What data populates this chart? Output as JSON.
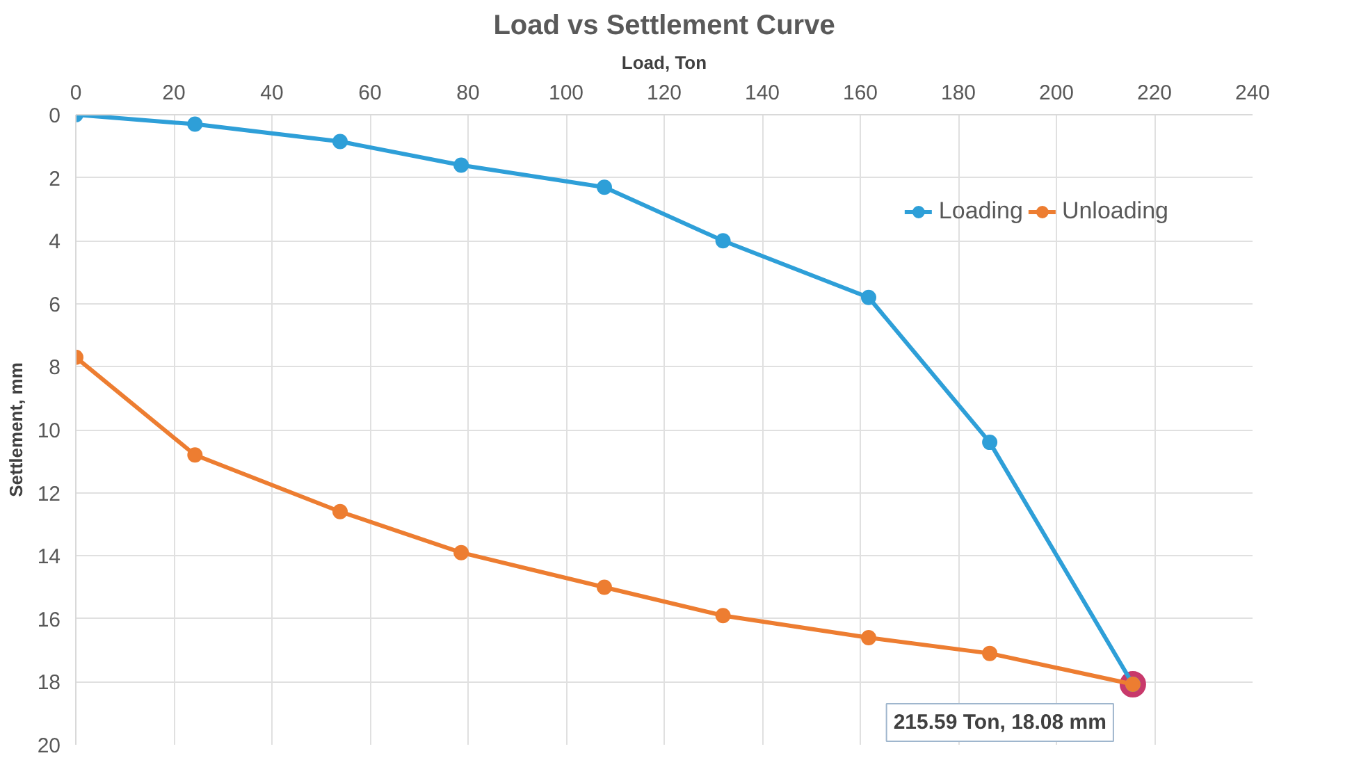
{
  "chart_data": {
    "type": "line",
    "title": "Load vs Settlement Curve",
    "xlabel": "Load, Ton",
    "ylabel": "Settlement, mm",
    "xlim": [
      0,
      240
    ],
    "xticks": [
      0,
      20,
      40,
      60,
      80,
      100,
      120,
      140,
      160,
      180,
      200,
      220,
      240
    ],
    "ylim": [
      20,
      0
    ],
    "yticks": [
      0,
      2,
      4,
      6,
      8,
      10,
      12,
      14,
      16,
      18,
      20
    ],
    "grid": true,
    "legend": "top right",
    "marker": "circle",
    "line_style": "solid",
    "series": [
      {
        "name": "Loading",
        "color": "#2e9fd8",
        "x": [
          0,
          24.3,
          53.9,
          78.6,
          107.8,
          132,
          161.7,
          186.4,
          215.59
        ],
        "values": [
          0,
          0.3,
          0.85,
          1.6,
          2.3,
          4.0,
          5.8,
          10.4,
          18.08
        ]
      },
      {
        "name": "Unloading",
        "color": "#ed7d31",
        "x": [
          0,
          24.3,
          53.9,
          78.6,
          107.8,
          132,
          161.7,
          186.4,
          215.59
        ],
        "values": [
          7.7,
          10.8,
          12.6,
          13.9,
          15.0,
          15.9,
          16.6,
          17.1,
          18.08
        ]
      }
    ],
    "annotations": [
      {
        "text": "215.59 Ton, 18.08 mm",
        "x": 215.59,
        "y": 18.08
      }
    ]
  }
}
